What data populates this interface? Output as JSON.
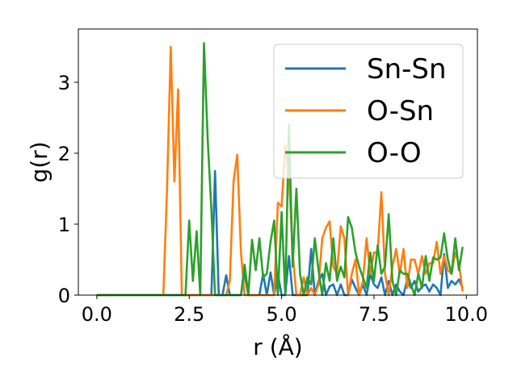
{
  "chart_data": {
    "type": "line",
    "xlabel": "r (Å)",
    "ylabel": "g(r)",
    "xlim": [
      -0.5,
      10.3
    ],
    "ylim": [
      0,
      3.75
    ],
    "xticks": [
      "0.0",
      "2.5",
      "5.0",
      "7.5",
      "10.0"
    ],
    "yticks": [
      "0",
      "1",
      "2",
      "3"
    ],
    "grid": false,
    "legend_position": "top-right",
    "series": [
      {
        "name": "Sn-Sn",
        "color": "#1f77b4",
        "x": [
          0,
          3.0,
          3.1,
          3.2,
          3.3,
          3.4,
          3.5,
          3.6,
          3.7,
          3.8,
          3.9,
          4.0,
          4.1,
          4.2,
          4.3,
          4.4,
          4.5,
          4.6,
          4.7,
          4.8,
          4.9,
          5.0,
          5.1,
          5.2,
          5.3,
          5.4,
          5.5,
          5.6,
          5.7,
          5.8,
          5.9,
          6.0,
          6.1,
          6.2,
          6.3,
          6.4,
          6.5,
          6.6,
          6.7,
          6.8,
          6.9,
          7.0,
          7.1,
          7.2,
          7.3,
          7.4,
          7.5,
          7.6,
          7.7,
          7.8,
          7.9,
          8.0,
          8.1,
          8.2,
          8.3,
          8.4,
          8.5,
          8.6,
          8.7,
          8.8,
          8.9,
          9.0,
          9.1,
          9.2,
          9.3,
          9.4,
          9.5,
          9.6,
          9.7,
          9.8,
          9.9
        ],
        "values": [
          0,
          0,
          0,
          1.75,
          0,
          0,
          0.28,
          0,
          0,
          0,
          0,
          0.3,
          0,
          0,
          0,
          0,
          0.3,
          0,
          0.32,
          0,
          0.3,
          0,
          0,
          0.55,
          0,
          0,
          0,
          0,
          0,
          0.65,
          0,
          0.2,
          0.3,
          0,
          0.12,
          0.15,
          0,
          0.15,
          0,
          0,
          0.22,
          0.1,
          0,
          0.15,
          0,
          0.3,
          0.15,
          0.1,
          0.25,
          0,
          0.2,
          0,
          0.15,
          0.05,
          0,
          0.22,
          0.1,
          0.2,
          0.05,
          0.12,
          0.15,
          0.05,
          0.15,
          0.1,
          0,
          0.58,
          0.1,
          0.2,
          0.15,
          0.22,
          0.1
        ]
      },
      {
        "name": "O-Sn",
        "color": "#ff7f0e",
        "x": [
          0,
          1.8,
          1.9,
          2.0,
          2.1,
          2.2,
          2.3,
          3.5,
          3.6,
          3.7,
          3.8,
          3.9,
          4.0,
          4.8,
          4.9,
          5.0,
          5.1,
          5.2,
          5.3,
          5.4,
          5.5,
          5.6,
          5.7,
          5.8,
          5.9,
          6.0,
          6.1,
          6.2,
          6.3,
          6.4,
          6.5,
          6.6,
          6.7,
          6.8,
          6.9,
          7.0,
          7.1,
          7.2,
          7.3,
          7.4,
          7.5,
          7.6,
          7.7,
          7.8,
          7.9,
          8.0,
          8.1,
          8.2,
          8.3,
          8.4,
          8.5,
          8.6,
          8.7,
          8.8,
          8.9,
          9.0,
          9.1,
          9.2,
          9.3,
          9.4,
          9.5,
          9.6,
          9.7,
          9.8,
          9.9
        ],
        "values": [
          0,
          0,
          1.5,
          3.5,
          1.6,
          2.9,
          0,
          0,
          0.2,
          1.6,
          1.98,
          0.6,
          0,
          0,
          1.3,
          1.25,
          2.1,
          1.7,
          0.6,
          0,
          0,
          0.25,
          0,
          0.1,
          0,
          0.15,
          0.8,
          0.95,
          1.04,
          0.4,
          0.3,
          0.97,
          0.8,
          0,
          0.3,
          0.5,
          0,
          0.2,
          0.8,
          0.3,
          0.6,
          0.6,
          1.45,
          0.3,
          0,
          0.4,
          0.65,
          0.3,
          0.65,
          0.1,
          0.5,
          0.5,
          0.3,
          0.55,
          0.3,
          0.45,
          0.45,
          0.75,
          0.3,
          0.55,
          0.35,
          0.3,
          0.6,
          0.45,
          0.05
        ]
      },
      {
        "name": "O-O",
        "color": "#2ca02c",
        "x": [
          0,
          2.4,
          2.5,
          2.6,
          2.7,
          2.8,
          2.9,
          3.0,
          3.1,
          3.2,
          3.3,
          3.4,
          3.5,
          3.6,
          3.7,
          3.8,
          3.9,
          4.0,
          4.1,
          4.2,
          4.3,
          4.4,
          4.5,
          4.6,
          4.7,
          4.8,
          4.9,
          5.0,
          5.1,
          5.2,
          5.3,
          5.4,
          5.5,
          5.6,
          5.7,
          5.8,
          5.9,
          6.0,
          6.1,
          6.2,
          6.3,
          6.4,
          6.5,
          6.6,
          6.7,
          6.8,
          6.9,
          7.0,
          7.1,
          7.2,
          7.3,
          7.4,
          7.5,
          7.6,
          7.7,
          7.8,
          7.9,
          8.0,
          8.1,
          8.2,
          8.3,
          8.4,
          8.5,
          8.6,
          8.7,
          8.8,
          8.9,
          9.0,
          9.1,
          9.2,
          9.3,
          9.4,
          9.5,
          9.6,
          9.7,
          9.8,
          9.9
        ],
        "values": [
          0,
          0,
          1.05,
          0.2,
          0.9,
          0,
          3.55,
          2.2,
          1.2,
          0,
          0,
          0,
          0,
          0,
          0,
          0,
          0,
          0.43,
          0,
          0.78,
          0.35,
          0.8,
          0.25,
          0.3,
          0.75,
          1.05,
          0,
          1.17,
          0,
          2.4,
          0.4,
          1.5,
          0.3,
          0,
          0.25,
          0.15,
          0.8,
          0.35,
          0,
          0.45,
          0.2,
          0.8,
          0.2,
          0.4,
          0.25,
          1.1,
          0.95,
          0.6,
          0.4,
          0.25,
          0.1,
          0.6,
          0.2,
          0.7,
          0.3,
          0.4,
          1.14,
          0.2,
          0,
          0.35,
          0.3,
          0.3,
          0.15,
          0,
          0.3,
          0.1,
          0.55,
          0.2,
          0.53,
          0.5,
          0.53,
          0.87,
          0.5,
          0.3,
          0.8,
          0.35,
          0.68
        ]
      }
    ]
  }
}
